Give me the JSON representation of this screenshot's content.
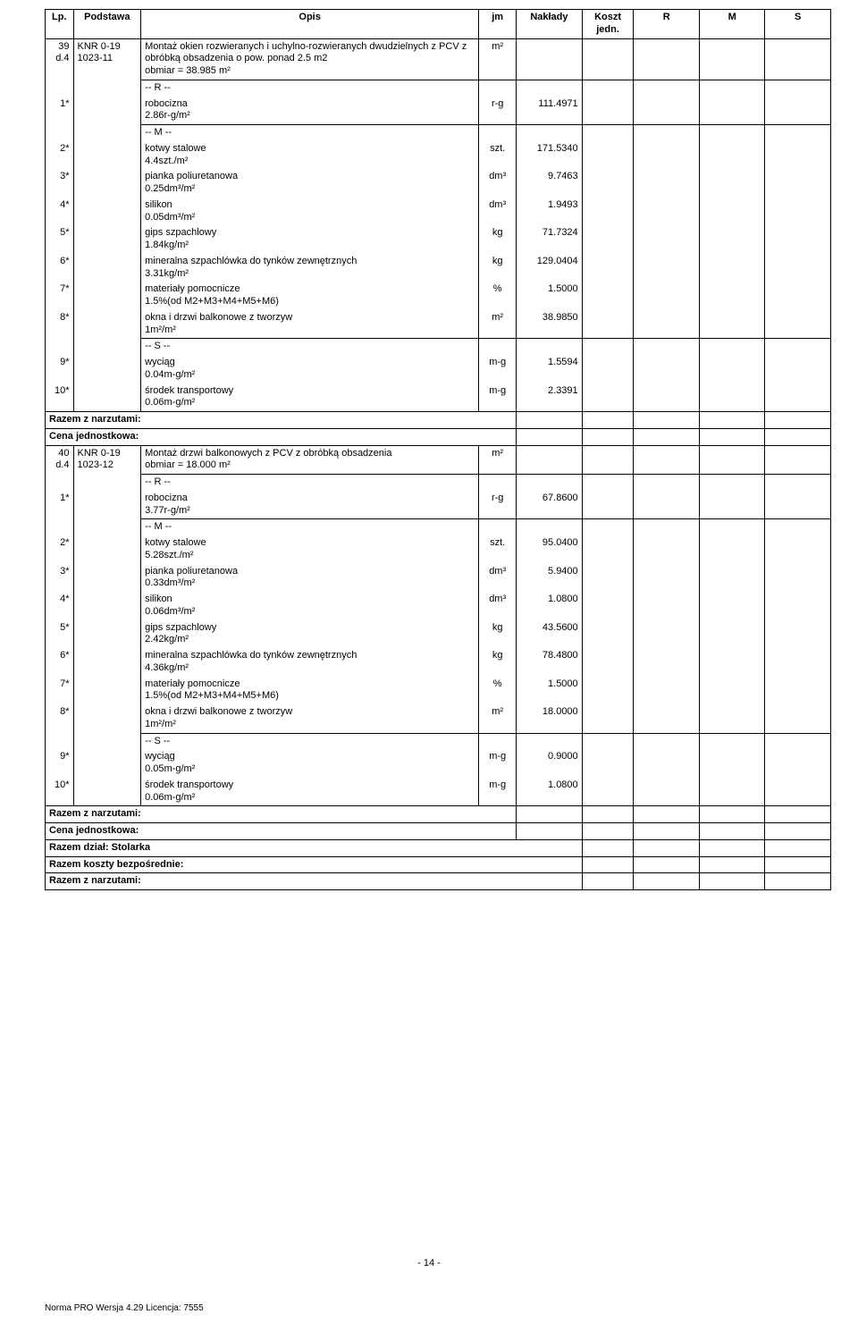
{
  "headers": {
    "lp": "Lp.",
    "podstawa": "Podstawa",
    "opis": "Opis",
    "jm": "jm",
    "naklady": "Nakłady",
    "koszt": "Koszt jedn.",
    "r": "R",
    "m": "M",
    "s": "S"
  },
  "rows": [
    {
      "type": "item-head",
      "lp_top": "39",
      "lp_bot": "d.4",
      "pod_top": "KNR 0-19",
      "pod_bot": "1023-11",
      "opis": "Montaż okien rozwieranych i uchylno-rozwieranych dwudzielnych z PCV z obróbką obsadzenia o pow. ponad 2.5 m2\nobmiar  =  38.985 m²",
      "jm": "m²"
    },
    {
      "type": "section",
      "label": "-- R --"
    },
    {
      "type": "calc",
      "lp": "1*",
      "opis1": "robocizna",
      "opis2": "2.86r-g/m²",
      "jm": "r-g",
      "nakl": "111.4971"
    },
    {
      "type": "section",
      "label": "-- M --"
    },
    {
      "type": "calc",
      "lp": "2*",
      "opis1": "kotwy stalowe",
      "opis2": "4.4szt./m²",
      "jm": "szt.",
      "nakl": "171.5340"
    },
    {
      "type": "calc",
      "lp": "3*",
      "opis1": "pianka poliuretanowa",
      "opis2": "0.25dm³/m²",
      "jm": "dm³",
      "nakl": "9.7463"
    },
    {
      "type": "calc",
      "lp": "4*",
      "opis1": "silikon",
      "opis2": "0.05dm³/m²",
      "jm": "dm³",
      "nakl": "1.9493"
    },
    {
      "type": "calc",
      "lp": "5*",
      "opis1": "gips szpachlowy",
      "opis2": "1.84kg/m²",
      "jm": "kg",
      "nakl": "71.7324"
    },
    {
      "type": "calc",
      "lp": "6*",
      "opis1": "mineralna szpachlówka do tynków zewnętrznych",
      "opis2": "3.31kg/m²",
      "jm": "kg",
      "nakl": "129.0404"
    },
    {
      "type": "calc",
      "lp": "7*",
      "opis1": "materiały pomocnicze",
      "opis2": "1.5%(od M2+M3+M4+M5+M6)",
      "jm": "%",
      "nakl": "1.5000"
    },
    {
      "type": "calc",
      "lp": "8*",
      "opis1": "okna i drzwi balkonowe z tworzyw",
      "opis2": "1m²/m²",
      "jm": "m²",
      "nakl": "38.9850"
    },
    {
      "type": "section",
      "label": "-- S --"
    },
    {
      "type": "calc",
      "lp": "9*",
      "opis1": "wyciąg",
      "opis2": "0.04m-g/m²",
      "jm": "m-g",
      "nakl": "1.5594"
    },
    {
      "type": "calc",
      "lp": "10*",
      "opis1": "środek transportowy",
      "opis2": "0.06m-g/m²",
      "jm": "m-g",
      "nakl": "2.3391"
    },
    {
      "type": "summary",
      "label": "Razem z narzutami:"
    },
    {
      "type": "summary",
      "label": "Cena jednostkowa:"
    },
    {
      "type": "item-head",
      "lp_top": "40",
      "lp_bot": "d.4",
      "pod_top": "KNR 0-19",
      "pod_bot": "1023-12",
      "opis": "Montaż drzwi balkonowych z PCV z obróbką obsadzenia\nobmiar  =  18.000 m²",
      "jm": "m²"
    },
    {
      "type": "section",
      "label": "-- R --"
    },
    {
      "type": "calc",
      "lp": "1*",
      "opis1": "robocizna",
      "opis2": "3.77r-g/m²",
      "jm": "r-g",
      "nakl": "67.8600"
    },
    {
      "type": "section",
      "label": "-- M --"
    },
    {
      "type": "calc",
      "lp": "2*",
      "opis1": "kotwy stalowe",
      "opis2": "5.28szt./m²",
      "jm": "szt.",
      "nakl": "95.0400"
    },
    {
      "type": "calc",
      "lp": "3*",
      "opis1": "pianka poliuretanowa",
      "opis2": "0.33dm³/m²",
      "jm": "dm³",
      "nakl": "5.9400"
    },
    {
      "type": "calc",
      "lp": "4*",
      "opis1": "silikon",
      "opis2": "0.06dm³/m²",
      "jm": "dm³",
      "nakl": "1.0800"
    },
    {
      "type": "calc",
      "lp": "5*",
      "opis1": "gips szpachlowy",
      "opis2": "2.42kg/m²",
      "jm": "kg",
      "nakl": "43.5600"
    },
    {
      "type": "calc",
      "lp": "6*",
      "opis1": "mineralna szpachlówka do tynków zewnętrznych",
      "opis2": "4.36kg/m²",
      "jm": "kg",
      "nakl": "78.4800"
    },
    {
      "type": "calc",
      "lp": "7*",
      "opis1": "materiały pomocnicze",
      "opis2": "1.5%(od M2+M3+M4+M5+M6)",
      "jm": "%",
      "nakl": "1.5000"
    },
    {
      "type": "calc",
      "lp": "8*",
      "opis1": "okna i drzwi balkonowe z tworzyw",
      "opis2": "1m²/m²",
      "jm": "m²",
      "nakl": "18.0000"
    },
    {
      "type": "section",
      "label": "-- S --"
    },
    {
      "type": "calc",
      "lp": "9*",
      "opis1": "wyciąg",
      "opis2": "0.05m-g/m²",
      "jm": "m-g",
      "nakl": "0.9000"
    },
    {
      "type": "calc",
      "lp": "10*",
      "opis1": "środek transportowy",
      "opis2": "0.06m-g/m²",
      "jm": "m-g",
      "nakl": "1.0800"
    },
    {
      "type": "summary",
      "label": "Razem z narzutami:"
    },
    {
      "type": "summary",
      "label": "Cena jednostkowa:"
    },
    {
      "type": "summary-wide",
      "label": "Razem dział: Stolarka"
    },
    {
      "type": "summary-wide",
      "label": "Razem koszty bezpośrednie:"
    },
    {
      "type": "summary-wide",
      "label": "Razem z narzutami:"
    }
  ],
  "footer": {
    "page": "- 14 -",
    "norma": "Norma PRO Wersja 4.29 Licencja: 7555"
  },
  "style": {
    "background": "#ffffff",
    "border_color": "#000000",
    "font_size": 11,
    "header_font_weight": "bold"
  }
}
